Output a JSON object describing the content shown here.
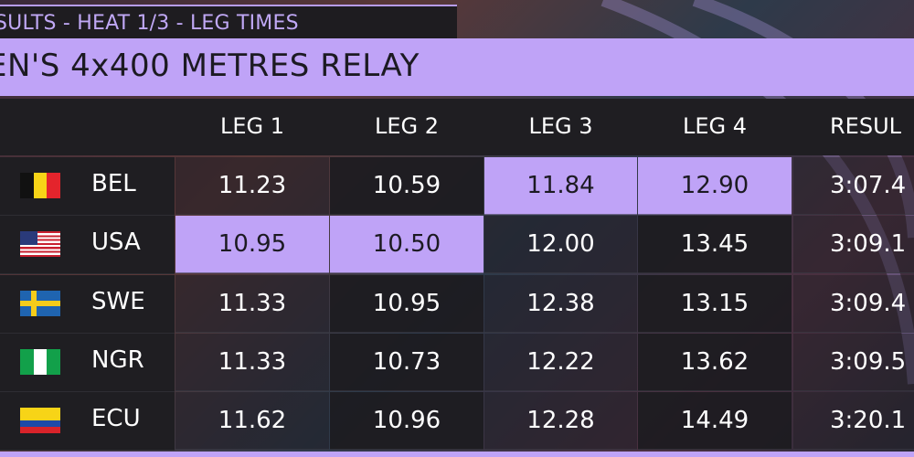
{
  "header": {
    "subtitle": "SULTS - HEAT  1/3 - LEG TIMES",
    "title": "EN'S 4x400 METRES RELAY"
  },
  "columns": [
    "LEG 1",
    "LEG 2",
    "LEG 3",
    "LEG 4",
    "RESUL"
  ],
  "highlight_color": "#bfa3f7",
  "rows": [
    {
      "code": "BEL",
      "flag": "belgium-flag",
      "legs": [
        "11.23",
        "10.59",
        "11.84",
        "12.90"
      ],
      "result": "3:07.4",
      "highlighted": [
        2,
        3
      ]
    },
    {
      "code": "USA",
      "flag": "usa-flag",
      "legs": [
        "10.95",
        "10.50",
        "12.00",
        "13.45"
      ],
      "result": "3:09.1",
      "highlighted": [
        0,
        1
      ]
    },
    {
      "code": "SWE",
      "flag": "sweden-flag",
      "legs": [
        "11.33",
        "10.95",
        "12.38",
        "13.15"
      ],
      "result": "3:09.4",
      "highlighted": []
    },
    {
      "code": "NGR",
      "flag": "nigeria-flag",
      "legs": [
        "11.33",
        "10.73",
        "12.22",
        "13.62"
      ],
      "result": "3:09.5",
      "highlighted": []
    },
    {
      "code": "ECU",
      "flag": "ecuador-flag",
      "legs": [
        "11.62",
        "10.96",
        "12.28",
        "14.49"
      ],
      "result": "3:20.1",
      "highlighted": []
    }
  ]
}
